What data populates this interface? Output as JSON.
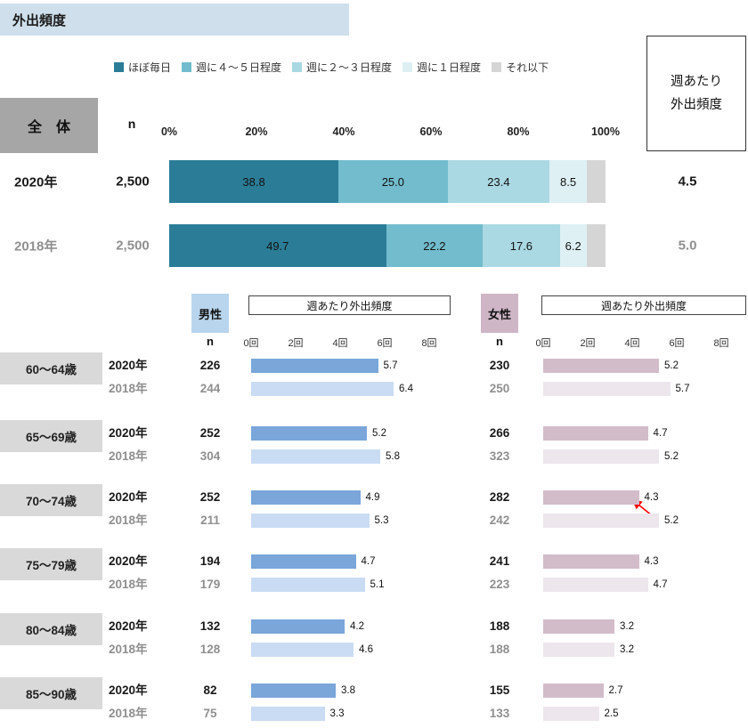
{
  "page": {
    "title": "外出頻度"
  },
  "overall": {
    "label": "全　体",
    "n_header": "n",
    "weekly_header_line1": "週あたり",
    "weekly_header_line2": "外出頻度"
  },
  "panels": {
    "male": {
      "n_header": "n",
      "header": "週あたり外出頻度"
    },
    "female": {
      "n_header": "n",
      "header": "週あたり外出頻度"
    }
  },
  "chart_data": [
    {
      "type": "bar",
      "subtype": "horizontal-stacked-100pct",
      "title": "外出頻度（全体）",
      "legend": [
        {
          "label": "ほぼ毎日",
          "color": "#2b7d97"
        },
        {
          "label": "週に４～５日程度",
          "color": "#72bccd"
        },
        {
          "label": "週に２～３日程度",
          "color": "#aad8e3"
        },
        {
          "label": "週に１日程度",
          "color": "#def0f4"
        },
        {
          "label": "それ以下",
          "color": "#d5d5d5"
        }
      ],
      "x_ticks": [
        "0%",
        "20%",
        "40%",
        "60%",
        "80%",
        "100%"
      ],
      "xlim": [
        0,
        100
      ],
      "rows": [
        {
          "year": "2020年",
          "n": "2,500",
          "values": [
            38.8,
            25.0,
            23.4,
            8.5,
            4.3
          ],
          "value_labels": [
            "38.8",
            "25.0",
            "23.4",
            "8.5",
            ""
          ],
          "weekly_avg": "4.5",
          "muted": false
        },
        {
          "year": "2018年",
          "n": "2,500",
          "values": [
            49.7,
            22.2,
            17.6,
            6.2,
            4.3
          ],
          "value_labels": [
            "49.7",
            "22.2",
            "17.6",
            "6.2",
            ""
          ],
          "weekly_avg": "5.0",
          "muted": true
        }
      ]
    },
    {
      "type": "bar",
      "subtype": "horizontal-grouped",
      "title": "週あたり外出頻度（性・年齢別）",
      "x_ticks": [
        "0回",
        "2回",
        "4回",
        "6回",
        "8回"
      ],
      "xlim": [
        0,
        8
      ],
      "age_groups": [
        "60～64歳",
        "65～69歳",
        "70～74歳",
        "75～79歳",
        "80～84歳",
        "85～90歳"
      ],
      "male": {
        "label": "男性",
        "bar_colors": {
          "y2020": "#7aa6da",
          "y2018": "#c9dcf3"
        },
        "groups": [
          {
            "age": "60～64歳",
            "rows": [
              {
                "year": "2020年",
                "n": "226",
                "value": 5.7
              },
              {
                "year": "2018年",
                "n": "244",
                "value": 6.4
              }
            ]
          },
          {
            "age": "65～69歳",
            "rows": [
              {
                "year": "2020年",
                "n": "252",
                "value": 5.2
              },
              {
                "year": "2018年",
                "n": "304",
                "value": 5.8
              }
            ]
          },
          {
            "age": "70～74歳",
            "rows": [
              {
                "year": "2020年",
                "n": "252",
                "value": 4.9
              },
              {
                "year": "2018年",
                "n": "211",
                "value": 5.3
              }
            ]
          },
          {
            "age": "75～79歳",
            "rows": [
              {
                "year": "2020年",
                "n": "194",
                "value": 4.7
              },
              {
                "year": "2018年",
                "n": "179",
                "value": 5.1
              }
            ]
          },
          {
            "age": "80～84歳",
            "rows": [
              {
                "year": "2020年",
                "n": "132",
                "value": 4.2
              },
              {
                "year": "2018年",
                "n": "128",
                "value": 4.6
              }
            ]
          },
          {
            "age": "85～90歳",
            "rows": [
              {
                "year": "2020年",
                "n": "82",
                "value": 3.8
              },
              {
                "year": "2018年",
                "n": "75",
                "value": 3.3
              }
            ]
          }
        ]
      },
      "female": {
        "label": "女性",
        "bar_colors": {
          "y2020": "#d3bcca",
          "y2018": "#ede6ec"
        },
        "groups": [
          {
            "age": "60～64歳",
            "rows": [
              {
                "year": "2020年",
                "n": "230",
                "value": 5.2
              },
              {
                "year": "2018年",
                "n": "250",
                "value": 5.7
              }
            ]
          },
          {
            "age": "65～69歳",
            "rows": [
              {
                "year": "2020年",
                "n": "266",
                "value": 4.7
              },
              {
                "year": "2018年",
                "n": "323",
                "value": 5.2
              }
            ]
          },
          {
            "age": "70～74歳",
            "rows": [
              {
                "year": "2020年",
                "n": "282",
                "value": 4.3,
                "annotated": true
              },
              {
                "year": "2018年",
                "n": "242",
                "value": 5.2
              }
            ]
          },
          {
            "age": "75～79歳",
            "rows": [
              {
                "year": "2020年",
                "n": "241",
                "value": 4.3
              },
              {
                "year": "2018年",
                "n": "223",
                "value": 4.7
              }
            ]
          },
          {
            "age": "80～84歳",
            "rows": [
              {
                "year": "2020年",
                "n": "188",
                "value": 3.2
              },
              {
                "year": "2018年",
                "n": "188",
                "value": 3.2
              }
            ]
          },
          {
            "age": "85～90歳",
            "rows": [
              {
                "year": "2020年",
                "n": "155",
                "value": 2.7
              },
              {
                "year": "2018年",
                "n": "133",
                "value": 2.5
              }
            ]
          }
        ]
      },
      "annotation": {
        "type": "arrow",
        "color": "#ff0000",
        "target_series": "女性",
        "target_age": "70～74歳",
        "target_year": "2020年",
        "target_value": 4.3
      }
    }
  ]
}
